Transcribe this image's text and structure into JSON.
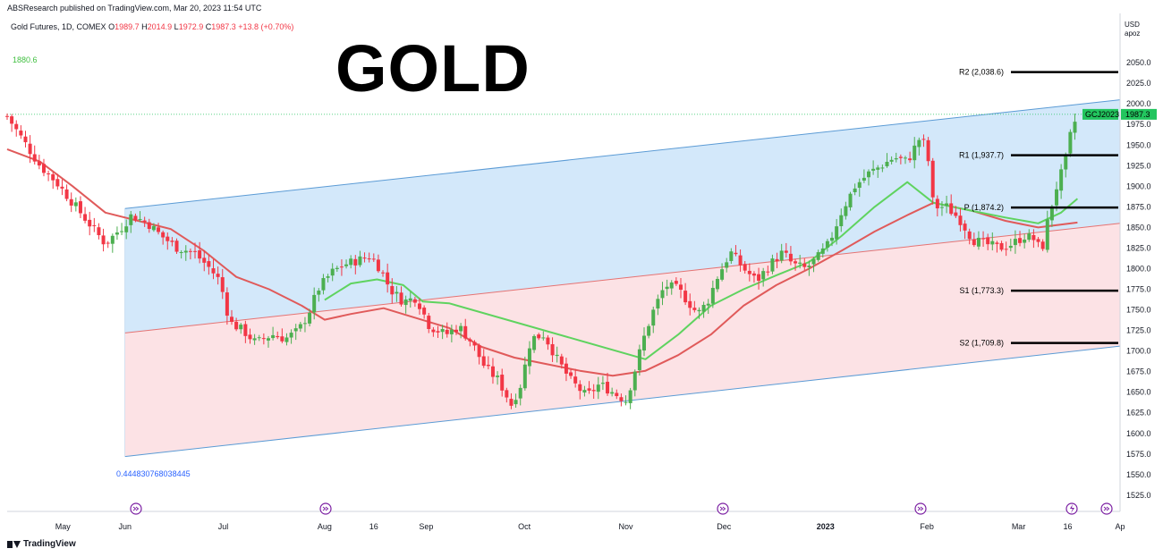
{
  "header": {
    "publisher": "ABSResearch published on TradingView.com, Mar 20, 2023 11:54 UTC",
    "symbol_line": "Gold Futures, 1D, COMEX",
    "open_label": "O",
    "open": "1989.7",
    "high_label": "H",
    "high": "2014.9",
    "low_label": "L",
    "low": "1972.9",
    "close_label": "C",
    "close": "1987.3",
    "change": "+13.8 (+0.70%)"
  },
  "overlay_title": "GOLD",
  "left_level_label": "1880.6",
  "fib_label": "0.444830768038445",
  "currency": "USD",
  "unit": "apoz",
  "price_tag": {
    "symbol": "GCJ2023",
    "value": "1987.3"
  },
  "footer": {
    "brand": "TradingView"
  },
  "colors": {
    "up": "#22ab94",
    "down": "#f23645",
    "ma_red": "#e05a5a",
    "ma_green": "#5fd35f",
    "channel_blue": "#bcdcf7",
    "channel_red": "#fbd6da",
    "channel_line": "#5b9bd5",
    "pivot_line": "#000000"
  },
  "chart_data": {
    "type": "candlestick",
    "title": "Gold Futures, 1D, COMEX",
    "ylabel": "USD",
    "ylim": [
      1510,
      2080
    ],
    "y_ticks": [
      2050,
      2025,
      2000,
      1975,
      1950,
      1925,
      1900,
      1875,
      1850,
      1825,
      1800,
      1775,
      1750,
      1725,
      1700,
      1675,
      1650,
      1625,
      1600,
      1575,
      1550,
      1525
    ],
    "x_ticks": [
      {
        "label": "May",
        "day": 0
      },
      {
        "label": "Jun",
        "day": 31
      },
      {
        "label": "Jul",
        "day": 61
      },
      {
        "label": "Aug",
        "day": 92
      },
      {
        "label": "16",
        "day": 107
      },
      {
        "label": "Sep",
        "day": 123
      },
      {
        "label": "Oct",
        "day": 153
      },
      {
        "label": "Nov",
        "day": 184
      },
      {
        "label": "Dec",
        "day": 214
      },
      {
        "label": "2023",
        "day": 245
      },
      {
        "label": "Feb",
        "day": 276
      },
      {
        "label": "Mar",
        "day": 304
      },
      {
        "label": "16",
        "day": 319
      },
      {
        "label": "Ap",
        "day": 335
      }
    ],
    "pivot_levels": [
      {
        "name": "R2",
        "label": "R2 (2,038.6)",
        "value": 2038.6
      },
      {
        "name": "R1",
        "label": "R1 (1,937.7)",
        "value": 1937.7
      },
      {
        "name": "P",
        "label": "P (1,874.2)",
        "value": 1874.2
      },
      {
        "name": "S1",
        "label": "S1 (1,773.3)",
        "value": 1773.3
      },
      {
        "name": "S2",
        "label": "S2 (1,709.8)",
        "value": 1709.8
      }
    ],
    "last_price": 1987.3,
    "channel": {
      "start_day": 31,
      "end_day": 335,
      "upper": [
        1873,
        2005
      ],
      "middle": [
        1722,
        1855
      ],
      "lower": [
        1572,
        1706
      ]
    },
    "anchors": [
      [
        -5,
        1985
      ],
      [
        0,
        1955
      ],
      [
        5,
        1925
      ],
      [
        10,
        1905
      ],
      [
        15,
        1880
      ],
      [
        20,
        1855
      ],
      [
        25,
        1830
      ],
      [
        30,
        1850
      ],
      [
        33,
        1865
      ],
      [
        38,
        1855
      ],
      [
        42,
        1840
      ],
      [
        47,
        1825
      ],
      [
        52,
        1820
      ],
      [
        57,
        1800
      ],
      [
        60,
        1785
      ],
      [
        63,
        1735
      ],
      [
        67,
        1725
      ],
      [
        71,
        1710
      ],
      [
        76,
        1720
      ],
      [
        80,
        1715
      ],
      [
        84,
        1725
      ],
      [
        87,
        1745
      ],
      [
        90,
        1775
      ],
      [
        94,
        1795
      ],
      [
        98,
        1805
      ],
      [
        102,
        1810
      ],
      [
        106,
        1815
      ],
      [
        109,
        1800
      ],
      [
        112,
        1775
      ],
      [
        116,
        1760
      ],
      [
        120,
        1765
      ],
      [
        124,
        1730
      ],
      [
        129,
        1720
      ],
      [
        133,
        1730
      ],
      [
        137,
        1710
      ],
      [
        141,
        1680
      ],
      [
        145,
        1665
      ],
      [
        149,
        1635
      ],
      [
        152,
        1660
      ],
      [
        155,
        1715
      ],
      [
        159,
        1720
      ],
      [
        163,
        1690
      ],
      [
        167,
        1665
      ],
      [
        172,
        1645
      ],
      [
        176,
        1660
      ],
      [
        180,
        1650
      ],
      [
        184,
        1640
      ],
      [
        186,
        1665
      ],
      [
        189,
        1710
      ],
      [
        192,
        1745
      ],
      [
        196,
        1780
      ],
      [
        200,
        1775
      ],
      [
        203,
        1760
      ],
      [
        206,
        1745
      ],
      [
        209,
        1760
      ],
      [
        212,
        1790
      ],
      [
        216,
        1820
      ],
      [
        220,
        1800
      ],
      [
        224,
        1785
      ],
      [
        228,
        1805
      ],
      [
        232,
        1820
      ],
      [
        235,
        1805
      ],
      [
        239,
        1800
      ],
      [
        243,
        1815
      ],
      [
        246,
        1830
      ],
      [
        250,
        1870
      ],
      [
        254,
        1900
      ],
      [
        258,
        1915
      ],
      [
        262,
        1925
      ],
      [
        266,
        1935
      ],
      [
        270,
        1930
      ],
      [
        274,
        1960
      ],
      [
        276,
        1945
      ],
      [
        278,
        1875
      ],
      [
        282,
        1875
      ],
      [
        286,
        1860
      ],
      [
        290,
        1835
      ],
      [
        294,
        1830
      ],
      [
        298,
        1825
      ],
      [
        302,
        1830
      ],
      [
        306,
        1840
      ],
      [
        309,
        1835
      ],
      [
        311,
        1820
      ],
      [
        313,
        1860
      ],
      [
        316,
        1905
      ],
      [
        318,
        1925
      ],
      [
        320,
        1965
      ],
      [
        322,
        1987
      ]
    ],
    "moving_averages": [
      {
        "name": "MA 1",
        "color": "red",
        "points": [
          [
            -5,
            1945
          ],
          [
            5,
            1930
          ],
          [
            15,
            1900
          ],
          [
            25,
            1868
          ],
          [
            35,
            1858
          ],
          [
            45,
            1848
          ],
          [
            55,
            1822
          ],
          [
            65,
            1790
          ],
          [
            75,
            1775
          ],
          [
            85,
            1755
          ],
          [
            92,
            1738
          ],
          [
            100,
            1745
          ],
          [
            110,
            1752
          ],
          [
            120,
            1740
          ],
          [
            130,
            1728
          ],
          [
            140,
            1705
          ],
          [
            150,
            1692
          ],
          [
            160,
            1684
          ],
          [
            170,
            1676
          ],
          [
            180,
            1670
          ],
          [
            190,
            1676
          ],
          [
            200,
            1695
          ],
          [
            210,
            1720
          ],
          [
            220,
            1755
          ],
          [
            230,
            1780
          ],
          [
            240,
            1800
          ],
          [
            250,
            1822
          ],
          [
            260,
            1845
          ],
          [
            270,
            1865
          ],
          [
            278,
            1880
          ],
          [
            290,
            1870
          ],
          [
            300,
            1858
          ],
          [
            310,
            1850
          ],
          [
            322,
            1856
          ]
        ]
      },
      {
        "name": "MA 2",
        "color": "green",
        "points": [
          [
            92,
            1762
          ],
          [
            100,
            1782
          ],
          [
            108,
            1787
          ],
          [
            116,
            1780
          ],
          [
            122,
            1760
          ],
          [
            130,
            1758
          ],
          [
            190,
            1690
          ],
          [
            200,
            1720
          ],
          [
            210,
            1755
          ],
          [
            220,
            1775
          ],
          [
            230,
            1792
          ],
          [
            240,
            1808
          ],
          [
            250,
            1840
          ],
          [
            260,
            1875
          ],
          [
            270,
            1905
          ],
          [
            278,
            1880
          ],
          [
            290,
            1870
          ],
          [
            300,
            1862
          ],
          [
            310,
            1855
          ],
          [
            317,
            1868
          ],
          [
            322,
            1885
          ]
        ]
      }
    ]
  }
}
